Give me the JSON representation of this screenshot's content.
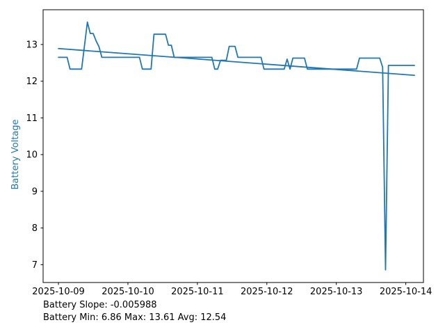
{
  "figure": {
    "background": "#ffffff",
    "accent_color": "#1f77b4",
    "text_color": "#000000"
  },
  "chart_data": {
    "type": "line",
    "title": "",
    "xlabel": "",
    "ylabel": "Battery Voltage",
    "grid": false,
    "legend": null,
    "x_unit": "hours since 2025-10-09 00:00",
    "xlim": [
      -5.3,
      126.1
    ],
    "ylim": [
      6.515,
      13.947
    ],
    "y_ticks": [
      7,
      8,
      9,
      10,
      11,
      12,
      13
    ],
    "x_ticks": [
      {
        "hour": 0,
        "label": "2025-10-09"
      },
      {
        "hour": 24,
        "label": "2025-10-10"
      },
      {
        "hour": 48,
        "label": "2025-10-11"
      },
      {
        "hour": 72,
        "label": "2025-10-12"
      },
      {
        "hour": 96,
        "label": "2025-10-13"
      },
      {
        "hour": 120,
        "label": "2025-10-14"
      }
    ],
    "series": [
      {
        "name": "battery-voltage",
        "color": "#1f77b4",
        "width": 1.8,
        "t": [
          0,
          1,
          2,
          3,
          4,
          5,
          6,
          7,
          8,
          9,
          10,
          11,
          12,
          13,
          14,
          15,
          16,
          17,
          18,
          19,
          20,
          21,
          22,
          23,
          24,
          25,
          26,
          27,
          28,
          29,
          30,
          31,
          32,
          33,
          34,
          35,
          36,
          37,
          38,
          39,
          40,
          41,
          42,
          43,
          44,
          45,
          46,
          47,
          48,
          49,
          50,
          51,
          52,
          53,
          54,
          55,
          56,
          57,
          58,
          59,
          60,
          61,
          62,
          63,
          64,
          65,
          66,
          67,
          68,
          69,
          70,
          71,
          72,
          73,
          74,
          75,
          76,
          77,
          78,
          79,
          80,
          81,
          82,
          83,
          84,
          85,
          86,
          87,
          88,
          89,
          90,
          91,
          92,
          93,
          94,
          95,
          96,
          97,
          98,
          99,
          100,
          101,
          102,
          103,
          104,
          105,
          106,
          107,
          108,
          109,
          110,
          111,
          112,
          113,
          114,
          115,
          116,
          117,
          118,
          119,
          120,
          121,
          122,
          123
        ],
        "v": [
          12.65,
          12.65,
          12.65,
          12.65,
          12.33,
          12.33,
          12.33,
          12.33,
          12.33,
          12.97,
          13.61,
          13.3,
          13.3,
          13.1,
          12.94,
          12.65,
          12.65,
          12.65,
          12.65,
          12.65,
          12.65,
          12.65,
          12.65,
          12.65,
          12.65,
          12.65,
          12.65,
          12.65,
          12.65,
          12.33,
          12.33,
          12.33,
          12.33,
          13.28,
          13.28,
          13.28,
          13.28,
          13.28,
          12.98,
          12.98,
          12.65,
          12.65,
          12.65,
          12.65,
          12.65,
          12.65,
          12.65,
          12.65,
          12.65,
          12.65,
          12.65,
          12.65,
          12.65,
          12.65,
          12.33,
          12.33,
          12.57,
          12.57,
          12.57,
          12.95,
          12.95,
          12.95,
          12.65,
          12.65,
          12.65,
          12.65,
          12.65,
          12.65,
          12.65,
          12.65,
          12.65,
          12.33,
          12.33,
          12.33,
          12.33,
          12.33,
          12.33,
          12.33,
          12.33,
          12.6,
          12.33,
          12.63,
          12.63,
          12.63,
          12.63,
          12.63,
          12.33,
          12.33,
          12.33,
          12.33,
          12.33,
          12.33,
          12.33,
          12.33,
          12.33,
          12.33,
          12.33,
          12.33,
          12.33,
          12.33,
          12.33,
          12.33,
          12.33,
          12.33,
          12.63,
          12.63,
          12.63,
          12.63,
          12.63,
          12.63,
          12.63,
          12.63,
          12.38,
          6.86,
          12.43,
          12.43,
          12.43,
          12.43,
          12.43,
          12.43,
          12.43,
          12.43,
          12.43,
          12.43
        ]
      },
      {
        "name": "trend",
        "color": "#1f77b4",
        "width": 1.8,
        "t": [
          0,
          123
        ],
        "v": [
          12.89,
          12.16
        ]
      }
    ]
  },
  "footer": {
    "line1": "Battery Slope: -0.005988",
    "line2": "Battery Min: 6.86 Max: 13.61 Avg: 12.54"
  },
  "stats": {
    "slope": -0.005988,
    "min": 6.86,
    "max": 13.61,
    "avg": 12.54
  }
}
